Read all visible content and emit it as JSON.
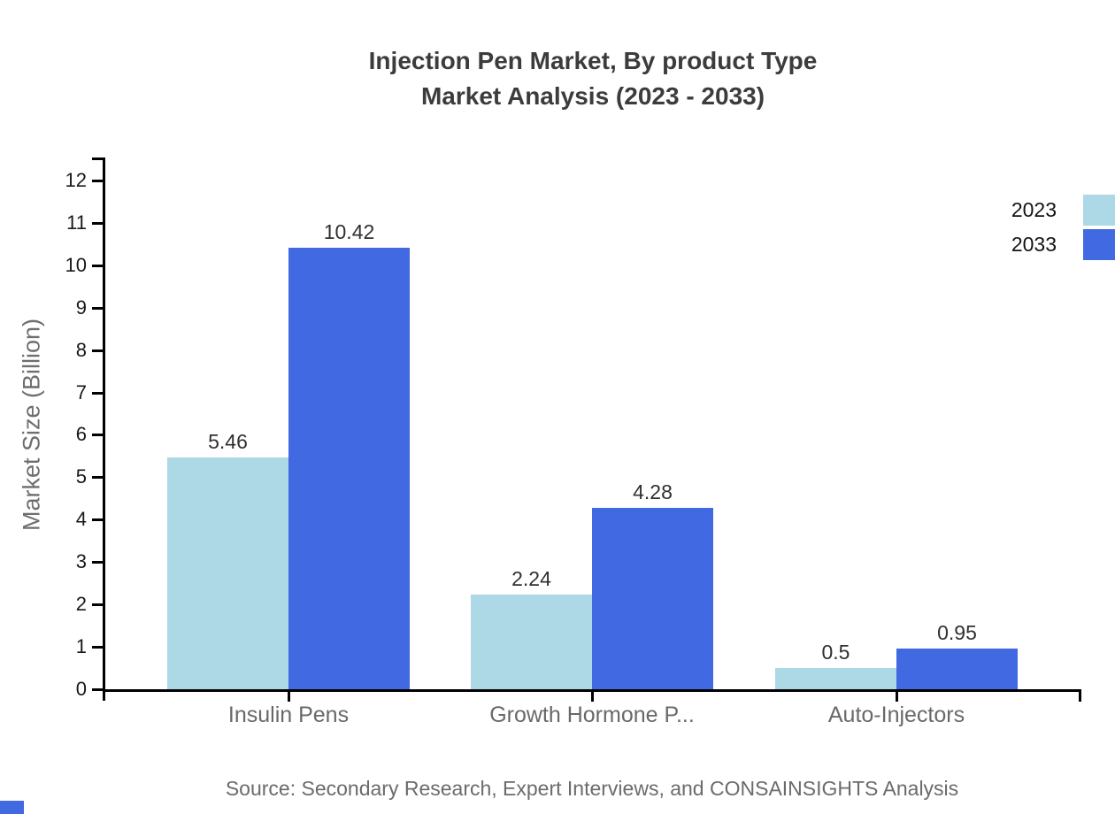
{
  "chart_data": {
    "type": "bar",
    "title_line1": "Injection Pen Market, By product Type",
    "title_line2": "Market Analysis (2023 - 2033)",
    "ylabel": "Market Size (Billion)",
    "xlabel": "",
    "categories": [
      "Insulin Pens",
      "Growth Hormone P...",
      "Auto-Injectors"
    ],
    "series": [
      {
        "name": "2023",
        "color": "#add8e6",
        "values": [
          5.46,
          2.24,
          0.5
        ]
      },
      {
        "name": "2033",
        "color": "#4169e1",
        "values": [
          10.42,
          4.28,
          0.95
        ]
      }
    ],
    "value_labels": [
      "5.46",
      "10.42",
      "2.24",
      "4.28",
      "0.5",
      "0.95"
    ],
    "ylim": [
      0,
      12.5
    ],
    "yticks": [
      0,
      1,
      2,
      3,
      4,
      5,
      6,
      7,
      8,
      9,
      10,
      11,
      12
    ],
    "grid": false,
    "legend_position": "top-right",
    "legend_labels": [
      "2023",
      "2033"
    ]
  },
  "source_note": "Source: Secondary Research, Expert Interviews, and CONSAINSIGHTS Analysis",
  "colors": {
    "series_2023": "#add8e6",
    "series_2033": "#4169e1",
    "axis": "#000000",
    "title_text": "#3c3c3c",
    "category_text": "#696969",
    "source_text": "#6b6b6b",
    "watermark": "#4169e1"
  }
}
